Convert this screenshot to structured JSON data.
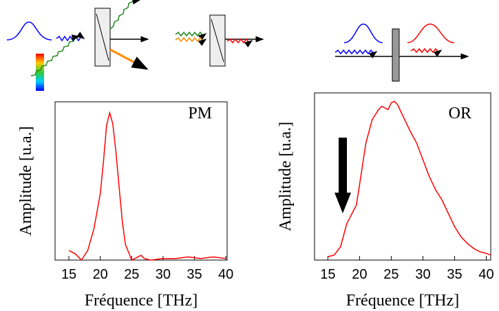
{
  "chart_data": [
    {
      "type": "line",
      "annotation": "PM",
      "x_label": "Fréquence [THz]",
      "y_label": "Amplitude [u.a.]",
      "xlim": [
        12.8,
        40.2
      ],
      "ylim": [
        0,
        1
      ],
      "xticks": [
        15,
        20,
        25,
        30,
        35,
        40
      ],
      "series": [
        {
          "name": null,
          "color": "#ff0000",
          "x": [
            15,
            16,
            17,
            18,
            19,
            20,
            20.5,
            21,
            21.5,
            22,
            22.5,
            23,
            23.5,
            24,
            25,
            26,
            26.5,
            27,
            28,
            30,
            32,
            34,
            36,
            38,
            40
          ],
          "values": [
            0.06,
            0.04,
            0.0,
            0.06,
            0.2,
            0.42,
            0.62,
            0.85,
            0.93,
            0.86,
            0.68,
            0.46,
            0.25,
            0.1,
            0.0,
            0.02,
            0.03,
            0.01,
            0.0,
            0.01,
            0.01,
            0.02,
            0.01,
            0.02,
            0.01
          ]
        }
      ]
    },
    {
      "type": "line",
      "annotation": "OR",
      "x_label": "Fréquence [THz]",
      "y_label": "Amplitude [u.a.]",
      "xlim": [
        12.9,
        40.7
      ],
      "ylim": [
        0,
        1
      ],
      "xticks": [
        15,
        20,
        25,
        30,
        35,
        40
      ],
      "series": [
        {
          "name": null,
          "color": "#ff0000",
          "x": [
            15,
            16,
            17,
            18,
            18.7,
            19.5,
            20,
            21,
            22,
            23,
            23.5,
            24,
            24.5,
            25,
            25.5,
            26,
            27,
            28,
            29,
            30,
            31,
            32,
            33,
            34,
            35,
            36,
            37,
            38,
            39,
            40,
            40.7
          ],
          "values": [
            0.02,
            0.03,
            0.08,
            0.22,
            0.27,
            0.33,
            0.45,
            0.7,
            0.84,
            0.9,
            0.92,
            0.91,
            0.9,
            0.94,
            0.95,
            0.93,
            0.85,
            0.77,
            0.7,
            0.6,
            0.5,
            0.42,
            0.36,
            0.28,
            0.2,
            0.14,
            0.1,
            0.07,
            0.05,
            0.04,
            0.03
          ]
        }
      ]
    }
  ]
}
